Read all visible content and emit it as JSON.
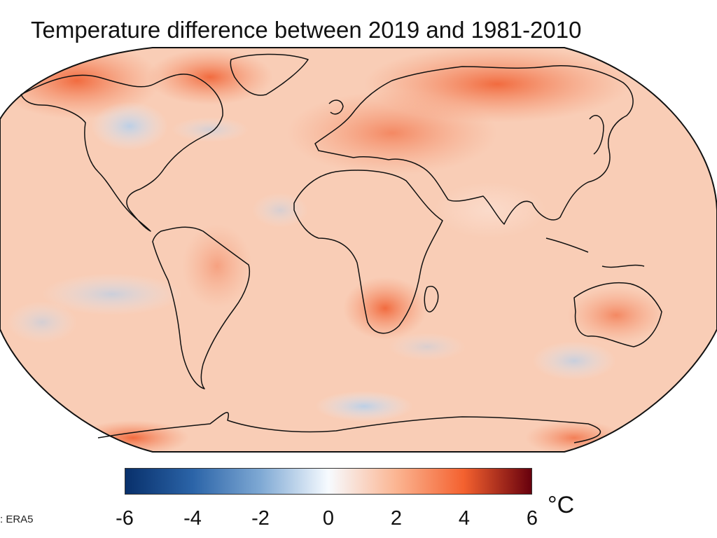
{
  "title": "Temperature difference between 2019 and 1981-2010",
  "map": {
    "projection": "Robinson",
    "variable": "temperature anomaly",
    "ocean_fill": "#f9cdb6",
    "land_outline": "#111111",
    "warm_regions": [
      "Arctic",
      "Europe",
      "northern Russia",
      "Africa",
      "southern Africa",
      "Australia",
      "Antarctica coast"
    ],
    "cool_regions": [
      "central North America",
      "North Atlantic",
      "South Pacific",
      "Southern Ocean",
      "Indian Ocean"
    ]
  },
  "colorbar": {
    "min": -6,
    "max": 6,
    "ticks": [
      "-6",
      "-4",
      "-2",
      "0",
      "2",
      "4",
      "6"
    ],
    "unit": "°C",
    "colors": [
      "#08306b",
      "#2b64a8",
      "#7fa9d4",
      "#f7fbff",
      "#fbb592",
      "#f4612f",
      "#67000d"
    ]
  },
  "source": ": ERA5"
}
